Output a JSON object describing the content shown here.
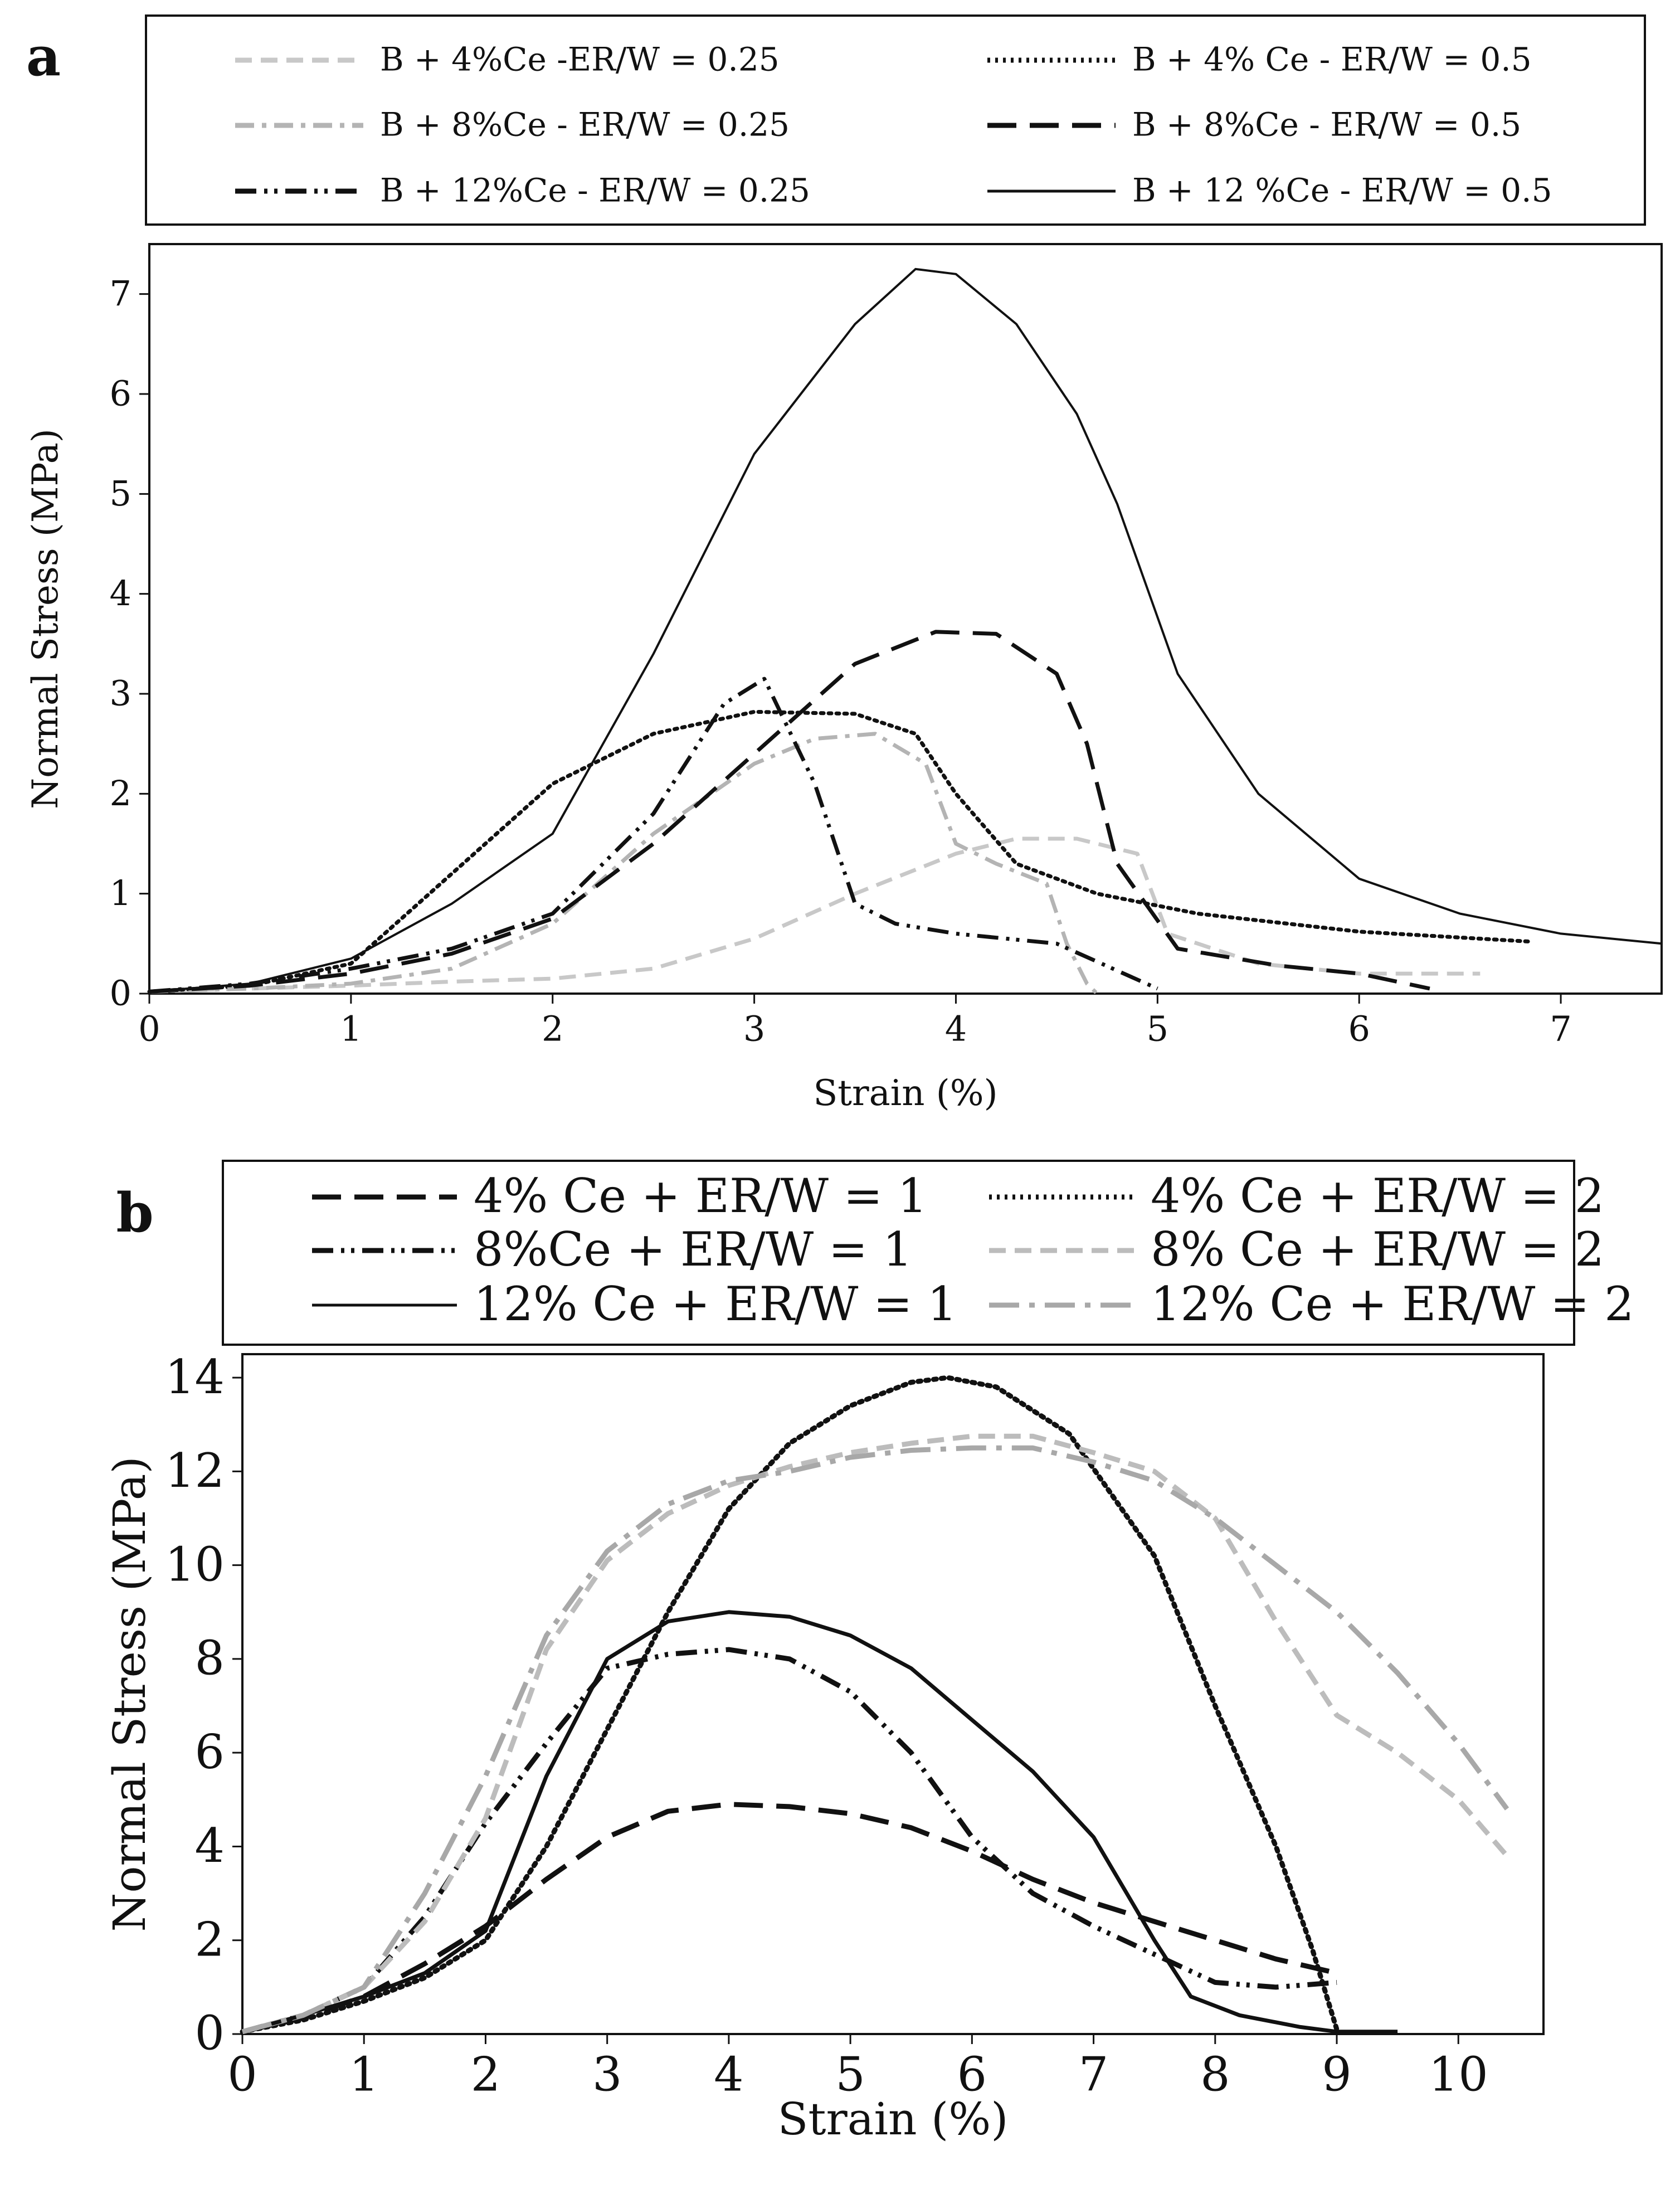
{
  "chart_data": [
    {
      "panel": "a",
      "type": "line",
      "xlabel": "Strain (%)",
      "ylabel": "Normal Stress (MPa)",
      "xlim": [
        0,
        7.5
      ],
      "ylim": [
        0,
        7.5
      ],
      "xticks": [
        "0",
        "1",
        "2",
        "3",
        "4",
        "5",
        "6",
        "7"
      ],
      "yticks": [
        "0",
        "1",
        "2",
        "3",
        "4",
        "5",
        "6",
        "7"
      ],
      "legend_position": "top",
      "series": [
        {
          "name": "B + 4%Ce -ER/W = 0.25",
          "color": "#c8c8c8",
          "style": "dash",
          "x": [
            0,
            0.5,
            1,
            1.5,
            2,
            2.5,
            3,
            3.5,
            4,
            4.3,
            4.6,
            4.9,
            5.05,
            5.5,
            6,
            6.6
          ],
          "y": [
            0.02,
            0.05,
            0.08,
            0.12,
            0.15,
            0.25,
            0.55,
            1.0,
            1.4,
            1.55,
            1.55,
            1.4,
            0.6,
            0.3,
            0.2,
            0.2
          ]
        },
        {
          "name": "B + 4% Ce - ER/W = 0.5",
          "color": "#111111",
          "style": "dot",
          "x": [
            0,
            0.5,
            1,
            1.5,
            2,
            2.5,
            3,
            3.5,
            3.8,
            4,
            4.3,
            4.7,
            5.2,
            6,
            6.85
          ],
          "y": [
            0.02,
            0.08,
            0.3,
            1.2,
            2.1,
            2.6,
            2.82,
            2.8,
            2.6,
            2.0,
            1.3,
            1.0,
            0.8,
            0.62,
            0.52
          ]
        },
        {
          "name": "B + 8%Ce - ER/W = 0.25",
          "color": "#b4b4b4",
          "style": "dashdot",
          "x": [
            0,
            0.5,
            1,
            1.5,
            2,
            2.5,
            3,
            3.3,
            3.6,
            3.85,
            4,
            4.2,
            4.45,
            4.55,
            4.65,
            4.7
          ],
          "y": [
            0.02,
            0.05,
            0.1,
            0.25,
            0.7,
            1.6,
            2.3,
            2.55,
            2.6,
            2.3,
            1.5,
            1.3,
            1.1,
            0.5,
            0.1,
            0
          ]
        },
        {
          "name": "B + 8%Ce - ER/W = 0.5",
          "color": "#111111",
          "style": "longdash",
          "x": [
            0,
            0.5,
            1,
            1.5,
            2,
            2.5,
            3,
            3.5,
            3.9,
            4.2,
            4.5,
            4.65,
            4.8,
            5.1,
            5.6,
            6,
            6.35
          ],
          "y": [
            0.02,
            0.08,
            0.2,
            0.4,
            0.75,
            1.5,
            2.4,
            3.3,
            3.62,
            3.6,
            3.2,
            2.5,
            1.3,
            0.45,
            0.28,
            0.2,
            0.05
          ]
        },
        {
          "name": "B + 12%Ce - ER/W = 0.25",
          "color": "#111111",
          "style": "dashdotdot",
          "x": [
            0,
            0.5,
            1,
            1.5,
            2,
            2.5,
            2.85,
            3.05,
            3.3,
            3.5,
            3.7,
            4,
            4.5,
            5
          ],
          "y": [
            0.02,
            0.1,
            0.25,
            0.45,
            0.8,
            1.8,
            2.9,
            3.15,
            2.1,
            0.9,
            0.7,
            0.6,
            0.5,
            0.05
          ]
        },
        {
          "name": "B + 12 %Ce - ER/W = 0.5",
          "color": "#111111",
          "style": "solid",
          "x": [
            0,
            0.5,
            1,
            1.5,
            2,
            2.5,
            3,
            3.5,
            3.8,
            4,
            4.3,
            4.6,
            4.8,
            5.1,
            5.5,
            6,
            6.5,
            7,
            7.5
          ],
          "y": [
            0.02,
            0.1,
            0.35,
            0.9,
            1.6,
            3.4,
            5.4,
            6.7,
            7.25,
            7.2,
            6.7,
            5.8,
            4.9,
            3.2,
            2.0,
            1.15,
            0.8,
            0.6,
            0.5
          ]
        }
      ]
    },
    {
      "panel": "b",
      "type": "line",
      "xlabel": "Strain (%)",
      "ylabel": "Normal Stress (MPa)",
      "xlim": [
        0,
        10.7
      ],
      "ylim": [
        0,
        14.5
      ],
      "xticks": [
        "0",
        "1",
        "2",
        "3",
        "4",
        "5",
        "6",
        "7",
        "8",
        "9",
        "10"
      ],
      "yticks": [
        "0",
        "2",
        "4",
        "6",
        "8",
        "10",
        "12",
        "14"
      ],
      "legend_position": "top",
      "series": [
        {
          "name": "4% Ce + ER/W = 1",
          "color": "#111111",
          "style": "longdash",
          "x": [
            0,
            0.5,
            1,
            1.5,
            2,
            2.5,
            3,
            3.5,
            4,
            4.5,
            5,
            5.5,
            6,
            6.5,
            7,
            7.5,
            8,
            8.5,
            9
          ],
          "y": [
            0.05,
            0.35,
            0.8,
            1.5,
            2.3,
            3.3,
            4.2,
            4.75,
            4.9,
            4.85,
            4.7,
            4.4,
            3.9,
            3.3,
            2.8,
            2.4,
            2.0,
            1.6,
            1.3
          ]
        },
        {
          "name": "4% Ce + ER/W = 2",
          "color": "#111111",
          "style": "dot",
          "x": [
            0,
            0.5,
            1,
            1.5,
            2,
            2.5,
            3,
            3.5,
            4,
            4.5,
            5,
            5.5,
            5.8,
            6.2,
            6.8,
            7.5,
            8,
            8.5,
            8.8,
            9
          ],
          "y": [
            0.05,
            0.3,
            0.7,
            1.2,
            2.0,
            4.0,
            6.5,
            9.0,
            11.2,
            12.6,
            13.4,
            13.9,
            14.0,
            13.8,
            12.8,
            10.2,
            7.0,
            4.0,
            1.8,
            0.1
          ]
        },
        {
          "name": "8%Ce + ER/W = 1",
          "color": "#111111",
          "style": "dashdotdot",
          "x": [
            0,
            0.5,
            1,
            1.5,
            2,
            2.5,
            3,
            3.5,
            4,
            4.5,
            5,
            5.5,
            6,
            6.5,
            7,
            7.5,
            8,
            8.5,
            9
          ],
          "y": [
            0.05,
            0.4,
            1.0,
            2.5,
            4.5,
            6.2,
            7.8,
            8.1,
            8.2,
            8.0,
            7.3,
            6.0,
            4.2,
            3.0,
            2.3,
            1.7,
            1.1,
            1.0,
            1.1
          ]
        },
        {
          "name": "8% Ce + ER/W = 2",
          "color": "#bcbcbc",
          "style": "dash",
          "x": [
            0,
            0.5,
            1,
            1.5,
            2,
            2.5,
            3,
            3.5,
            4,
            4.5,
            5,
            5.5,
            6,
            6.5,
            7,
            7.5,
            8,
            8.5,
            9,
            9.5,
            10,
            10.4
          ],
          "y": [
            0.05,
            0.4,
            1.0,
            2.4,
            4.6,
            8.2,
            10.1,
            11.1,
            11.7,
            12.1,
            12.4,
            12.6,
            12.75,
            12.75,
            12.4,
            12.0,
            11.0,
            8.8,
            6.8,
            6.0,
            5.0,
            3.8
          ]
        },
        {
          "name": "12% Ce + ER/W = 1",
          "color": "#111111",
          "style": "solid",
          "x": [
            0,
            0.5,
            1,
            1.5,
            2,
            2.5,
            3,
            3.5,
            4,
            4.5,
            5,
            5.5,
            6,
            6.5,
            7,
            7.5,
            7.8,
            8.2,
            8.7,
            9,
            9.5
          ],
          "y": [
            0.05,
            0.4,
            0.8,
            1.3,
            2.2,
            5.5,
            8.0,
            8.8,
            9.0,
            8.9,
            8.5,
            7.8,
            6.7,
            5.6,
            4.2,
            2.0,
            0.8,
            0.4,
            0.15,
            0.05,
            0.05
          ]
        },
        {
          "name": "12% Ce + ER/W = 2",
          "color": "#a8a8a8",
          "style": "longdashdot",
          "x": [
            0,
            0.5,
            1,
            1.5,
            2,
            2.5,
            3,
            3.5,
            4,
            4.5,
            5,
            5.5,
            6,
            6.5,
            7,
            7.5,
            8,
            8.5,
            9,
            9.5,
            10,
            10.4
          ],
          "y": [
            0.05,
            0.4,
            1.0,
            3.0,
            5.5,
            8.5,
            10.3,
            11.3,
            11.8,
            12.0,
            12.3,
            12.45,
            12.5,
            12.5,
            12.2,
            11.8,
            11.0,
            10.0,
            9.0,
            7.7,
            6.2,
            4.8
          ]
        }
      ]
    }
  ]
}
